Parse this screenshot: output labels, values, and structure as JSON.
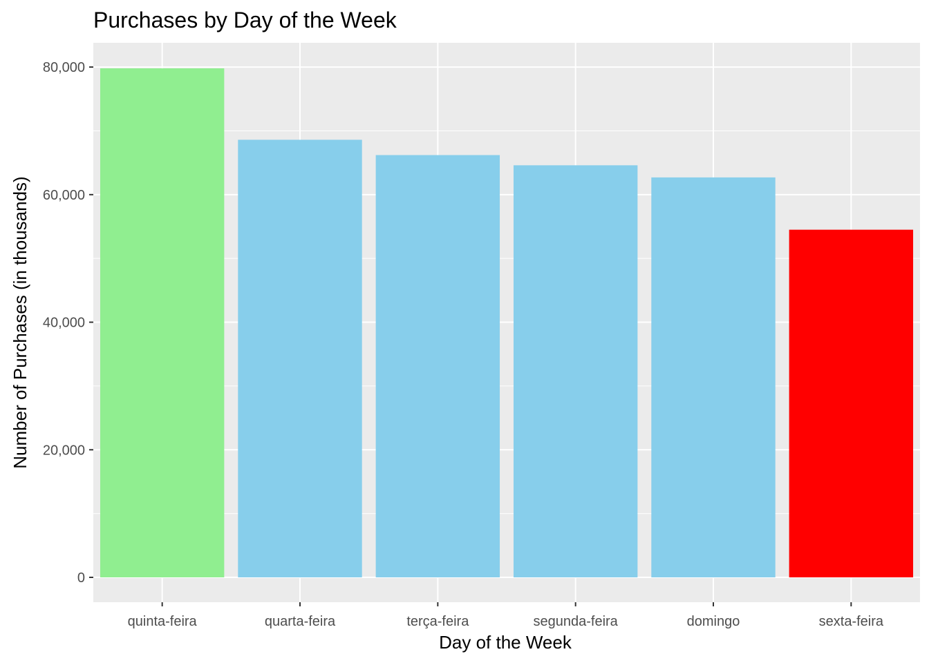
{
  "chart_data": {
    "type": "bar",
    "title": "Purchases by Day of the Week",
    "xlabel": "Day of the Week",
    "ylabel": "Number of Purchases (in thousands)",
    "categories": [
      "quinta-feira",
      "quarta-feira",
      "terça-feira",
      "segunda-feira",
      "domingo",
      "sexta-feira"
    ],
    "values": [
      79800,
      68600,
      66200,
      64600,
      62700,
      54500
    ],
    "bar_colors": [
      "#90EE90",
      "#87CEEB",
      "#87CEEB",
      "#87CEEB",
      "#87CEEB",
      "#FF0000"
    ],
    "ylim": [
      -3900,
      83800
    ],
    "y_ticks": [
      0,
      20000,
      40000,
      60000,
      80000
    ],
    "y_tick_labels": [
      "0",
      "20,000",
      "40,000",
      "60,000",
      "80,000"
    ],
    "panel_background": "#EBEBEB",
    "grid": true,
    "legend": "none"
  }
}
